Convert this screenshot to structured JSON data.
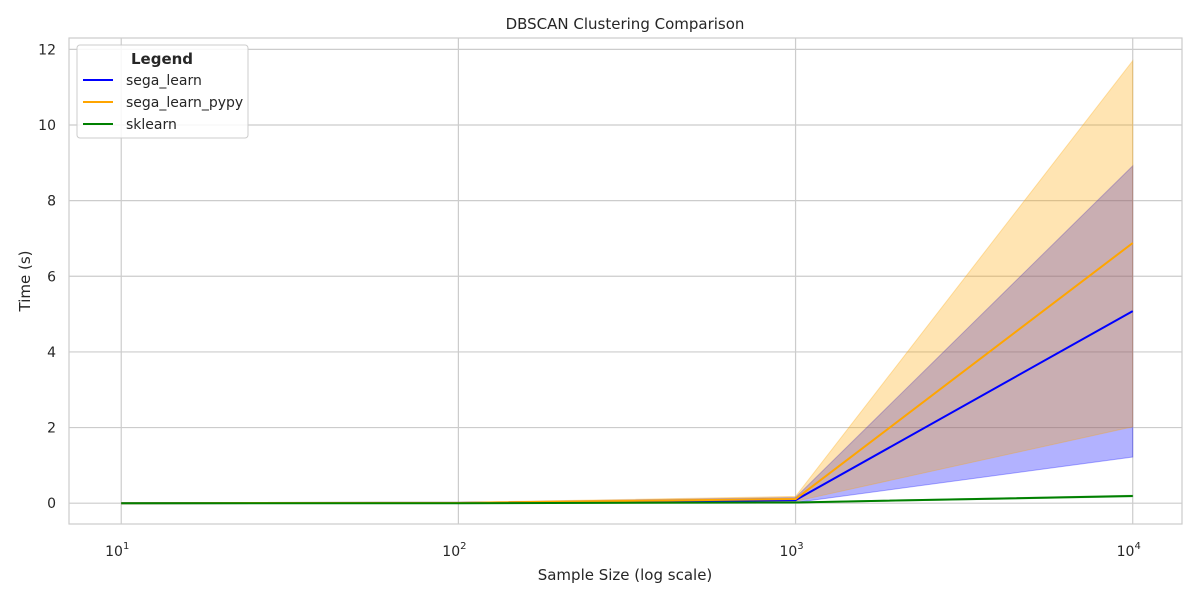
{
  "chart_data": {
    "type": "line",
    "title": "DBSCAN Clustering Comparison",
    "xlabel": "Sample Size (log scale)",
    "ylabel": "Time (s)",
    "xscale": "log",
    "xlim": [
      7,
      14000
    ],
    "ylim": [
      -0.55,
      12.3
    ],
    "x": [
      10,
      100,
      1000,
      10000
    ],
    "xticks": [
      {
        "value": 10,
        "base": "10",
        "exp": "1"
      },
      {
        "value": 100,
        "base": "10",
        "exp": "2"
      },
      {
        "value": 1000,
        "base": "10",
        "exp": "3"
      },
      {
        "value": 10000,
        "base": "10",
        "exp": "4"
      }
    ],
    "yticks": [
      0,
      2,
      4,
      6,
      8,
      10,
      12
    ],
    "grid": true,
    "legend": {
      "title": "Legend",
      "position": "top-left"
    },
    "series": [
      {
        "name": "sega_learn",
        "color": "#0000ff",
        "values": [
          0.0,
          0.01,
          0.08,
          5.08
        ],
        "band_lower": [
          0.0,
          0.0,
          0.02,
          1.22
        ],
        "band_upper": [
          0.0,
          0.02,
          0.15,
          8.92
        ]
      },
      {
        "name": "sega_learn_pypy",
        "color": "#ffa500",
        "values": [
          0.0,
          0.01,
          0.11,
          6.88
        ],
        "band_lower": [
          0.0,
          0.0,
          0.05,
          2.02
        ],
        "band_upper": [
          0.0,
          0.02,
          0.18,
          11.7
        ]
      },
      {
        "name": "sklearn",
        "color": "#008000",
        "values": [
          0.0,
          0.0,
          0.02,
          0.19
        ],
        "band_lower": [
          0.0,
          0.0,
          0.01,
          0.17
        ],
        "band_upper": [
          0.0,
          0.0,
          0.03,
          0.21
        ]
      }
    ]
  }
}
